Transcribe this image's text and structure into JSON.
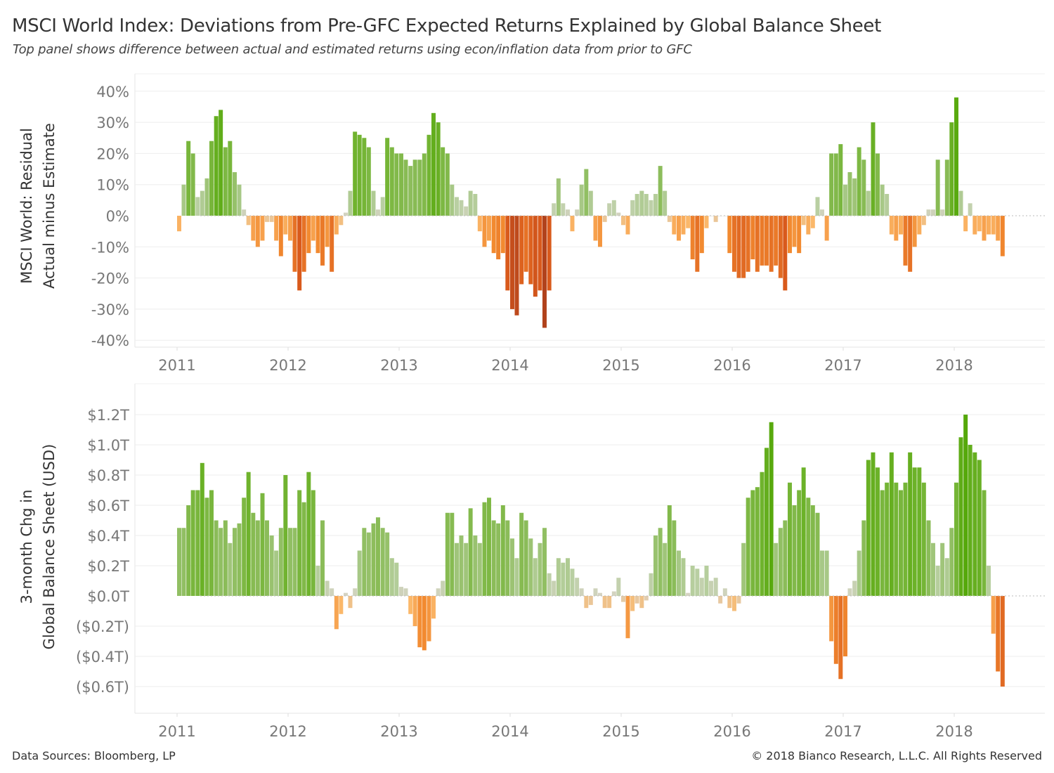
{
  "title": "MSCI World Index: Deviations from Pre-GFC Expected Returns Explained by Global Balance Sheet",
  "subtitle": "Top panel shows difference between actual and estimated returns using econ/inflation data from prior to GFC",
  "footer": {
    "source": "Data Sources: Bloomberg, LP",
    "copyright": "© 2018 Bianco Research, L.L.C. All Rights Reserved"
  },
  "colors": {
    "diverging_scale": [
      "#a33a1c",
      "#d95a1c",
      "#f28a30",
      "#fbb86a",
      "#d8d4c6",
      "#b9cfa2",
      "#8dbd5c",
      "#6db22a",
      "#55a80a"
    ],
    "gridline": "#eeeeee",
    "tick_text": "#777777"
  },
  "chart_data": [
    {
      "type": "bar",
      "ylabel_lines": [
        "MSCI World: Residual",
        "Actual minus Estimate"
      ],
      "ytick_labels": [
        "40%",
        "30%",
        "20%",
        "10%",
        "0%",
        "-10%",
        "-20%",
        "-30%",
        "-40%"
      ],
      "yticks": [
        40,
        30,
        20,
        10,
        0,
        -10,
        -20,
        -30,
        -40
      ],
      "ylim": [
        -40,
        40
      ],
      "xtick_labels": [
        "2011",
        "2012",
        "2013",
        "2014",
        "2015",
        "2016",
        "2017",
        "2018"
      ],
      "grid": true,
      "color_encoding": "diverging orange-to-green",
      "unit": "%",
      "values": [
        -5,
        10,
        24,
        20,
        6,
        8,
        12,
        24,
        32,
        34,
        22,
        24,
        14,
        10,
        2,
        -3,
        -8,
        -10,
        -8,
        -2,
        -2,
        -8,
        -13,
        -6,
        -8,
        -18,
        -24,
        -18,
        -12,
        -8,
        -12,
        -16,
        -10,
        -18,
        -6,
        -3,
        1,
        8,
        27,
        26,
        25,
        22,
        8,
        2,
        6,
        25,
        22,
        20,
        20,
        18,
        16,
        18,
        18,
        20,
        26,
        33,
        30,
        22,
        20,
        10,
        6,
        5,
        3,
        8,
        7,
        -5,
        -10,
        -8,
        -12,
        -14,
        -12,
        -24,
        -30,
        -32,
        -22,
        -18,
        -22,
        -26,
        -24,
        -36,
        -24,
        4,
        12,
        4,
        2,
        -5,
        2,
        10,
        15,
        8,
        -8,
        -10,
        -2,
        4,
        5,
        1,
        -3,
        -6,
        5,
        7,
        8,
        7,
        5,
        7,
        16,
        8,
        -2,
        -6,
        -8,
        -6,
        -4,
        -14,
        -18,
        -12,
        -4,
        0,
        -2,
        0,
        0,
        -12,
        -18,
        -20,
        -20,
        -18,
        -14,
        -18,
        -16,
        -16,
        -18,
        -16,
        -20,
        -24,
        -12,
        -10,
        -12,
        -3,
        -6,
        -4,
        6,
        2,
        -8,
        20,
        20,
        23,
        10,
        14,
        12,
        22,
        18,
        8,
        30,
        20,
        10,
        7,
        -6,
        -8,
        -6,
        -16,
        -18,
        -10,
        -6,
        -3,
        2,
        2,
        18,
        2,
        18,
        30,
        38,
        8,
        -5,
        4,
        -6,
        -5,
        -8,
        -6,
        -6,
        -8,
        -13
      ]
    },
    {
      "type": "bar",
      "ylabel_lines": [
        "3-month Chg in",
        "Global Balance Sheet (USD)"
      ],
      "ytick_labels": [
        "$1.2T",
        "$1.0T",
        "$0.8T",
        "$0.6T",
        "$0.4T",
        "$0.2T",
        "$0.0T",
        "($0.2T)",
        "($0.4T)",
        "($0.6T)"
      ],
      "yticks": [
        1.2,
        1.0,
        0.8,
        0.6,
        0.4,
        0.2,
        0,
        -0.2,
        -0.4,
        -0.6
      ],
      "ylim": [
        -0.6,
        1.2
      ],
      "xtick_labels": [
        "2011",
        "2012",
        "2013",
        "2014",
        "2015",
        "2016",
        "2017",
        "2018"
      ],
      "grid": true,
      "color_encoding": "diverging orange-to-green",
      "unit": "USD trillions",
      "values": [
        0.45,
        0.45,
        0.6,
        0.7,
        0.7,
        0.88,
        0.65,
        0.7,
        0.5,
        0.45,
        0.5,
        0.35,
        0.45,
        0.48,
        0.65,
        0.82,
        0.55,
        0.5,
        0.68,
        0.5,
        0.4,
        0.3,
        0.45,
        0.8,
        0.45,
        0.45,
        0.7,
        0.62,
        0.82,
        0.7,
        0.2,
        0.5,
        0.1,
        0.05,
        -0.22,
        -0.12,
        0.02,
        -0.08,
        0.05,
        0.3,
        0.45,
        0.42,
        0.48,
        0.52,
        0.45,
        0.42,
        0.25,
        0.22,
        0.06,
        0.05,
        -0.12,
        -0.2,
        -0.34,
        -0.36,
        -0.3,
        -0.15,
        0.05,
        0.1,
        0.55,
        0.55,
        0.35,
        0.4,
        0.35,
        0.58,
        0.4,
        0.35,
        0.62,
        0.65,
        0.5,
        0.48,
        0.6,
        0.5,
        0.38,
        0.25,
        0.55,
        0.5,
        0.38,
        0.25,
        0.35,
        0.45,
        0.15,
        0.1,
        0.25,
        0.22,
        0.25,
        0.18,
        0.12,
        0.05,
        -0.08,
        -0.06,
        0.05,
        0.02,
        -0.08,
        -0.08,
        0.03,
        0.12,
        -0.04,
        -0.28,
        -0.1,
        -0.05,
        -0.08,
        -0.03,
        0.15,
        0.4,
        0.45,
        0.35,
        0.6,
        0.5,
        0.3,
        0.25,
        0.02,
        0.2,
        0.18,
        0.12,
        0.2,
        0.1,
        0.12,
        -0.05,
        0.05,
        -0.08,
        -0.1,
        -0.05,
        0.35,
        0.65,
        0.7,
        0.72,
        0.82,
        0.98,
        1.15,
        0.35,
        0.45,
        0.5,
        0.75,
        0.6,
        0.7,
        0.85,
        0.65,
        0.6,
        0.55,
        0.3,
        0.3,
        -0.3,
        -0.45,
        -0.55,
        -0.4,
        0.05,
        0.1,
        0.3,
        0.5,
        0.9,
        0.95,
        0.85,
        0.7,
        0.75,
        0.95,
        0.75,
        0.7,
        0.75,
        0.95,
        0.85,
        0.85,
        0.75,
        0.5,
        0.35,
        0.2,
        0.35,
        0.25,
        0.45,
        0.75,
        1.05,
        1.2,
        1.0,
        0.95,
        0.9,
        0.7,
        0.2,
        -0.25,
        -0.5,
        -0.6
      ]
    }
  ],
  "x_dates": [
    "2011-01-01",
    "2011-01-16",
    "2011-02-01",
    "2011-02-16",
    "2011-03-01",
    "2011-03-16",
    "2011-04-01",
    "2011-04-16",
    "2011-05-01",
    "2011-05-16",
    "2011-06-01",
    "2011-06-16",
    "2011-07-01",
    "2011-07-16",
    "2011-08-01",
    "2011-08-16",
    "2011-09-01",
    "2011-09-16",
    "2011-10-01",
    "2011-10-16",
    "2011-11-01",
    "2011-11-16",
    "2011-12-01",
    "2011-12-16",
    "2012-01-01",
    "2012-01-16",
    "2012-02-01",
    "2012-02-16",
    "2012-03-01",
    "2012-03-16",
    "2012-04-01",
    "2012-04-16",
    "2012-05-01",
    "2012-05-16",
    "2012-06-01",
    "2012-06-16",
    "2012-07-01",
    "2012-07-16",
    "2012-08-01",
    "2012-08-16",
    "2012-09-01",
    "2012-09-16",
    "2012-10-01",
    "2012-10-16",
    "2012-11-01",
    "2012-11-16",
    "2012-12-01",
    "2012-12-16",
    "2013-01-01",
    "2013-01-16",
    "2013-02-01",
    "2013-02-16",
    "2013-03-01",
    "2013-03-16",
    "2013-04-01",
    "2013-04-16",
    "2013-05-01",
    "2013-05-16",
    "2013-06-01",
    "2013-06-16",
    "2013-07-01",
    "2013-07-16",
    "2013-08-01",
    "2013-08-16",
    "2013-09-01",
    "2013-09-16",
    "2013-10-01",
    "2013-10-16",
    "2013-11-01",
    "2013-11-16",
    "2013-12-01",
    "2013-12-16",
    "2014-01-01",
    "2014-01-16",
    "2014-02-01",
    "2014-02-16",
    "2014-03-01",
    "2014-03-16",
    "2014-04-01",
    "2014-04-16",
    "2014-05-01",
    "2014-05-16",
    "2014-06-01",
    "2014-06-16",
    "2014-07-01",
    "2014-07-16",
    "2014-08-01",
    "2014-08-16",
    "2014-09-01",
    "2014-09-16",
    "2014-10-01",
    "2014-10-16",
    "2014-11-01",
    "2014-11-16",
    "2014-12-01",
    "2014-12-16",
    "2015-01-01",
    "2015-01-16",
    "2015-02-01",
    "2015-02-16",
    "2015-03-01",
    "2015-03-16",
    "2015-04-01",
    "2015-04-16",
    "2015-05-01",
    "2015-05-16",
    "2015-06-01",
    "2015-06-16",
    "2015-07-01",
    "2015-07-16",
    "2015-08-01",
    "2015-08-16",
    "2015-09-01",
    "2015-09-16",
    "2015-10-01",
    "2015-10-16",
    "2015-11-01",
    "2015-11-16",
    "2015-12-01",
    "2015-12-16",
    "2016-01-01",
    "2016-01-16",
    "2016-02-01",
    "2016-02-16",
    "2016-03-01",
    "2016-03-16",
    "2016-04-01",
    "2016-04-16",
    "2016-05-01",
    "2016-05-16",
    "2016-06-01",
    "2016-06-16",
    "2016-07-01",
    "2016-07-16",
    "2016-08-01",
    "2016-08-16",
    "2016-09-01",
    "2016-09-16",
    "2016-10-01",
    "2016-10-16",
    "2016-11-01",
    "2016-11-16",
    "2016-12-01",
    "2016-12-16",
    "2017-01-01",
    "2017-01-16",
    "2017-02-01",
    "2017-02-16",
    "2017-03-01",
    "2017-03-16",
    "2017-04-01",
    "2017-04-16",
    "2017-05-01",
    "2017-05-16",
    "2017-06-01",
    "2017-06-16",
    "2017-07-01",
    "2017-07-16",
    "2017-08-01",
    "2017-08-16",
    "2017-09-01",
    "2017-09-16",
    "2017-10-01",
    "2017-10-16",
    "2017-11-01",
    "2017-11-16",
    "2017-12-01",
    "2017-12-16",
    "2018-01-01",
    "2018-01-16",
    "2018-02-01",
    "2018-02-16",
    "2018-03-01",
    "2018-03-16",
    "2018-04-01",
    "2018-04-16",
    "2018-05-01",
    "2018-05-16",
    "2018-06-01"
  ]
}
